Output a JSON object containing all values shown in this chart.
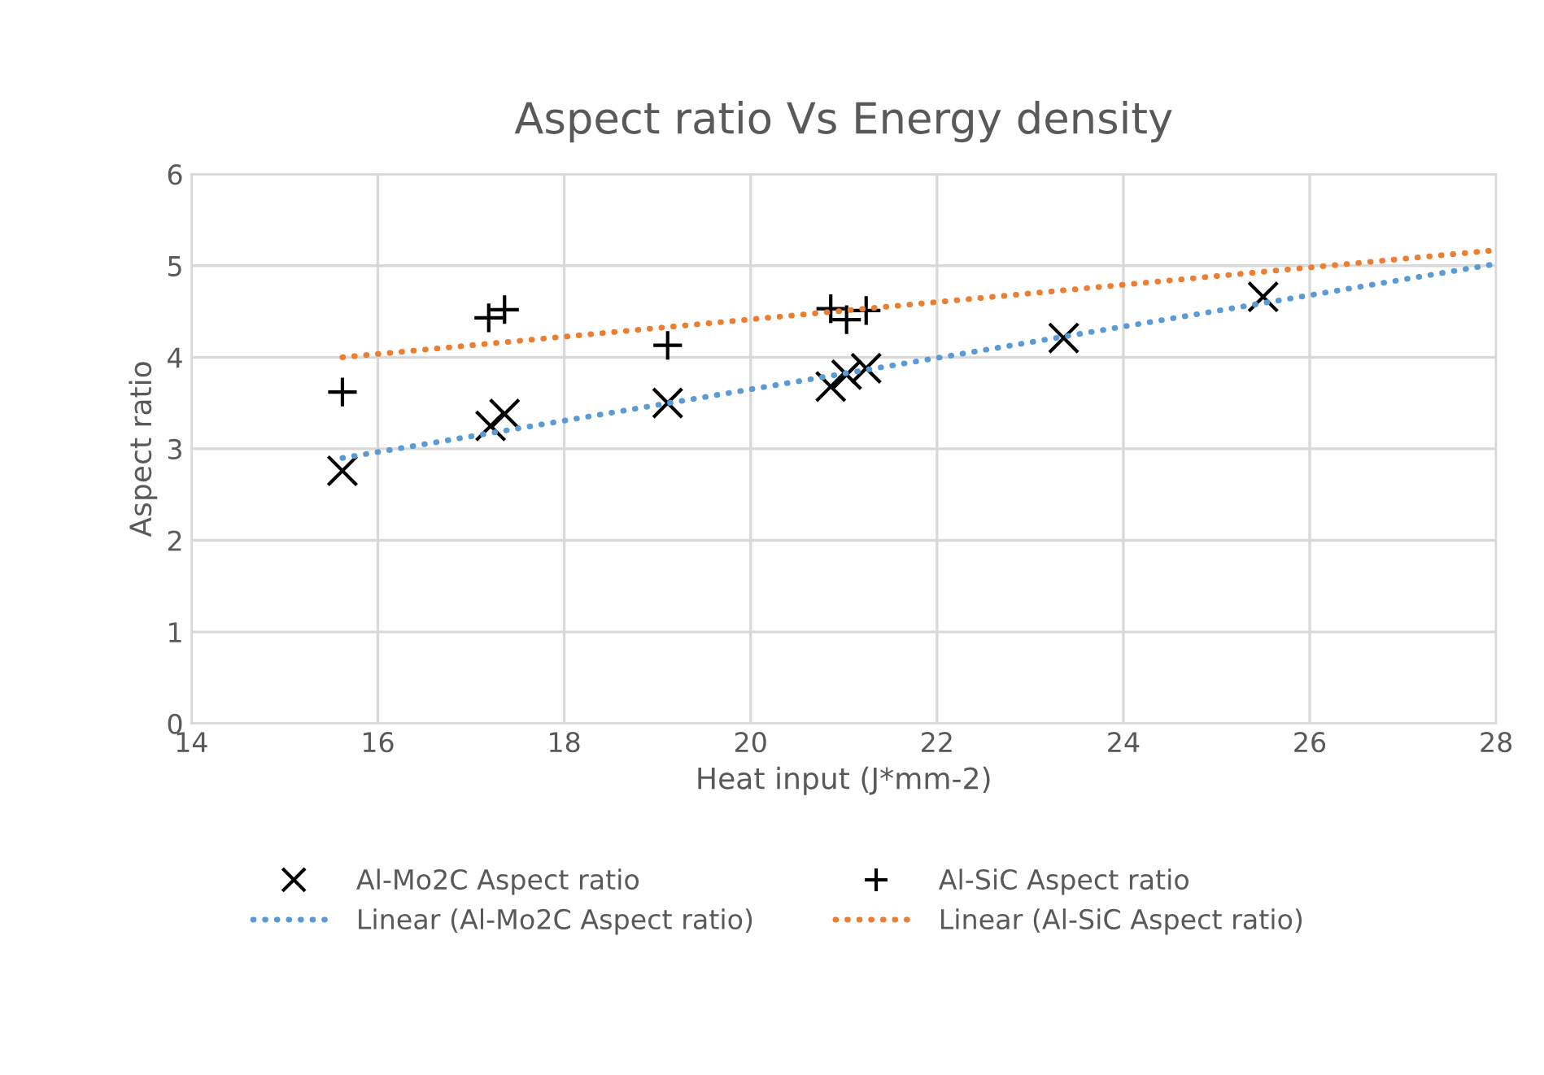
{
  "chart_data": {
    "type": "scatter",
    "title": "Aspect ratio Vs Energy density",
    "xlabel": "Heat input (J*mm-2)",
    "ylabel": "Aspect ratio",
    "series": [
      {
        "name": "Al-Mo2C Aspect ratio",
        "marker": "cross",
        "color": "#000000",
        "x": [
          15.62,
          17.21,
          17.36,
          19.11,
          20.86,
          21.03,
          21.24,
          23.36,
          25.5
        ],
        "values": [
          2.76,
          3.25,
          3.38,
          3.5,
          3.68,
          3.81,
          3.88,
          4.21,
          4.66
        ]
      },
      {
        "name": "Al-SiC Aspect ratio",
        "marker": "plus",
        "color": "#000000",
        "x": [
          15.62,
          17.19,
          17.36,
          19.11,
          20.86,
          21.03,
          21.24
        ],
        "values": [
          3.62,
          4.43,
          4.52,
          4.13,
          4.53,
          4.41,
          4.51
        ]
      },
      {
        "name": "Linear (Al-Mo2C Aspect ratio)",
        "type": "line",
        "line_style": "dotted",
        "marker": "none",
        "color": "#5b9bd5",
        "x": [
          15.62,
          28
        ],
        "values": [
          2.9,
          5.02
        ]
      },
      {
        "name": "Linear (Al-SiC Aspect ratio)",
        "type": "line",
        "line_style": "dotted",
        "marker": "none",
        "color": "#ed7d31",
        "x": [
          15.62,
          28
        ],
        "values": [
          4.0,
          5.17
        ]
      }
    ],
    "xlim": [
      14,
      28
    ],
    "xticks": [
      14,
      16,
      18,
      20,
      22,
      24,
      26,
      28
    ],
    "ylim": [
      0,
      6
    ],
    "yticks": [
      0,
      1,
      2,
      3,
      4,
      5,
      6
    ],
    "grid": true,
    "legend": "bottom"
  }
}
